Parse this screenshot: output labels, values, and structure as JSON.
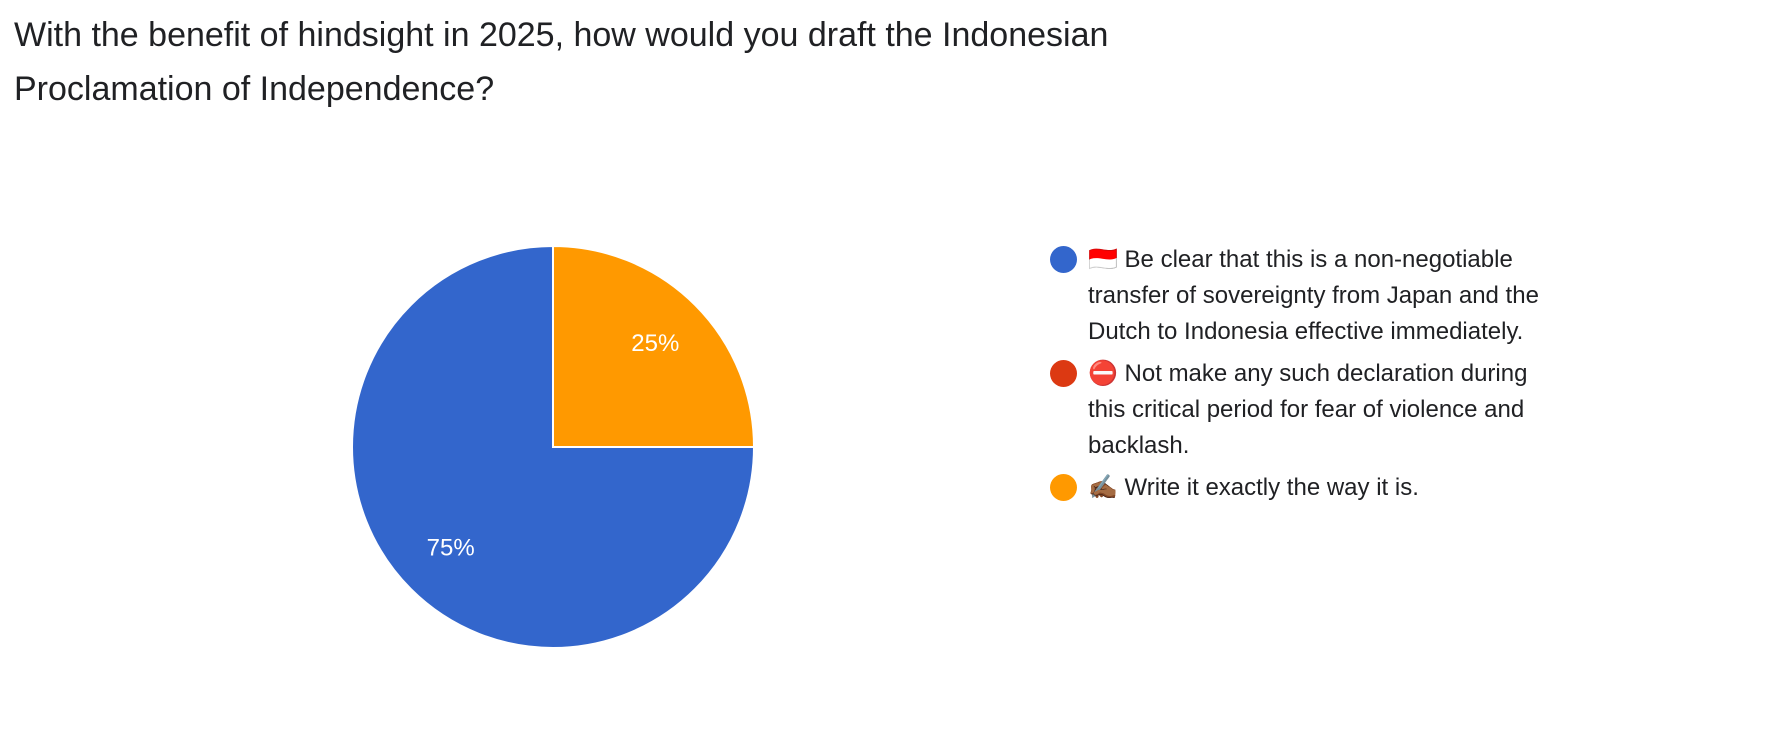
{
  "chart_data": {
    "type": "pie",
    "title": "With the benefit of hindsight in 2025, how would you draft the Indonesian Proclamation of Independence?",
    "categories": [
      "🇮🇩 Be clear that this is a non-negotiable transfer of sovereignty from Japan and the Dutch to Indonesia effective immediately.",
      "⛔ Not make any such declaration during this critical period for fear of violence and backlash.",
      "✍🏾 Write it exactly the way it is."
    ],
    "values": [
      75,
      0,
      25
    ],
    "value_labels": [
      "75%",
      null,
      "25%"
    ],
    "colors": [
      "#3366cc",
      "#dc3912",
      "#ff9900"
    ],
    "legend": "right"
  }
}
